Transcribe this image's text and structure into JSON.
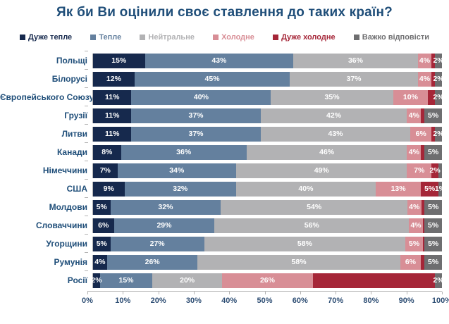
{
  "title": "Як би Ви оцінили своє ставлення до таких країн?",
  "colors": {
    "title": "#1F4E79",
    "category_label": "#1F4E79",
    "axis_label": "#2E4E74",
    "axis_line": "#B4B4B4",
    "very_warm": "#16294D",
    "warm": "#64809E",
    "neutral": "#B2B2B4",
    "cold": "#D88E96",
    "very_cold": "#A52638",
    "hard_to_answer": "#6E6E70"
  },
  "legend": [
    {
      "label": "Дуже тепле",
      "key": "very_warm"
    },
    {
      "label": "Тепле",
      "key": "warm"
    },
    {
      "label": "Нейтральне",
      "key": "neutral"
    },
    {
      "label": "Холодне",
      "key": "cold"
    },
    {
      "label": "Дуже холодне",
      "key": "very_cold"
    },
    {
      "label": "Важко відповісти",
      "key": "hard_to_answer"
    }
  ],
  "chart_data": {
    "type": "bar",
    "variant": "horizontal-stacked-100",
    "title": "Як би Ви оцінили своє ставлення до таких країн?",
    "categories": [
      "Польщі",
      "Білорусі",
      "Європейського Союзу",
      "Грузії",
      "Литви",
      "Канади",
      "Німеччини",
      "США",
      "Молдови",
      "Словаччини",
      "Угорщини",
      "Румунія",
      "Росії"
    ],
    "series": [
      {
        "name": "Дуже тепле",
        "key": "very_warm",
        "values": [
          15,
          12,
          11,
          11,
          11,
          8,
          7,
          9,
          5,
          6,
          5,
          4,
          2
        ],
        "labels": [
          "15%",
          "12%",
          "11%",
          "11%",
          "11%",
          "8%",
          "7%",
          "9%",
          "5%",
          "6%",
          "5%",
          "4%",
          "2%"
        ]
      },
      {
        "name": "Тепле",
        "key": "warm",
        "values": [
          43,
          45,
          40,
          37,
          37,
          36,
          34,
          32,
          32,
          29,
          27,
          26,
          15
        ],
        "labels": [
          "43%",
          "45%",
          "40%",
          "37%",
          "37%",
          "36%",
          "34%",
          "32%",
          "32%",
          "29%",
          "27%",
          "26%",
          "15%"
        ]
      },
      {
        "name": "Нейтральне",
        "key": "neutral",
        "values": [
          36,
          37,
          35,
          42,
          43,
          46,
          49,
          40,
          54,
          56,
          58,
          58,
          20
        ],
        "labels": [
          "36%",
          "37%",
          "35%",
          "42%",
          "43%",
          "46%",
          "49%",
          "40%",
          "54%",
          "56%",
          "58%",
          "58%",
          "20%"
        ]
      },
      {
        "name": "Холодне",
        "key": "cold",
        "values": [
          4,
          4,
          10,
          4,
          6,
          4,
          7,
          13,
          4,
          4,
          5,
          6,
          26
        ],
        "labels": [
          "4%",
          "4%",
          "10%",
          "4%",
          "6%",
          "4%",
          "7%",
          "13%",
          "4%",
          "4%",
          "5%",
          "6%",
          "26%"
        ]
      },
      {
        "name": "Дуже холодне",
        "key": "very_cold",
        "values": [
          1,
          1,
          2,
          1,
          1,
          1,
          2,
          5,
          1,
          0.5,
          0.5,
          1,
          35
        ],
        "labels": [
          "",
          "",
          "",
          "",
          "",
          "",
          "2%",
          "5%",
          "",
          "",
          "",
          "",
          ""
        ]
      },
      {
        "name": "Важко відповісти",
        "key": "hard_to_answer",
        "values": [
          2,
          2,
          2,
          5,
          2,
          5,
          1,
          1,
          5,
          5,
          5,
          5,
          2
        ],
        "labels": [
          "2%",
          "2%",
          "2%",
          "5%",
          "2%",
          "5%",
          "",
          "1%",
          "5%",
          "5%",
          "5%",
          "5%",
          "2%"
        ]
      }
    ],
    "x_axis": {
      "min": 0,
      "max": 100,
      "tick_step": 10,
      "tick_labels": [
        "0%",
        "10%",
        "20%",
        "30%",
        "40%",
        "50%",
        "60%",
        "70%",
        "80%",
        "90%",
        "100%"
      ]
    },
    "legend_position": "top",
    "grid": false
  }
}
